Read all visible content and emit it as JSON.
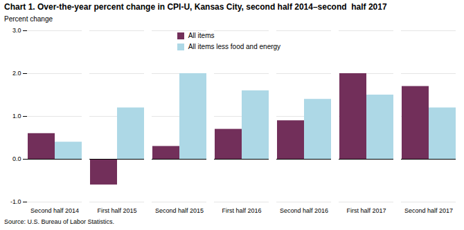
{
  "chart_data": {
    "type": "bar",
    "title": "Chart 1. Over-the-year percent change in CPI-U, Kansas City, second half 2014–second  half 2017",
    "ylabel": "Percent change",
    "source": "Source: U.S. Bureau of Labor Statistics.",
    "categories": [
      "Second half 2014",
      "First half 2015",
      "Second half 2015",
      "First half 2016",
      "Second half 2016",
      "First half 2017",
      "Second half 2017"
    ],
    "series": [
      {
        "name": "All items",
        "color": "#722F5A",
        "values": [
          0.6,
          -0.6,
          0.3,
          0.7,
          0.9,
          2.0,
          1.7
        ]
      },
      {
        "name": "All items less food and energy",
        "color": "#ADD8E6",
        "values": [
          0.4,
          1.2,
          2.0,
          1.6,
          1.4,
          1.5,
          1.2
        ]
      }
    ],
    "ylim": [
      -1.0,
      3.0
    ],
    "yticks": [
      {
        "value": -1.0,
        "label": "-1.0"
      },
      {
        "value": 0.0,
        "label": "0.0"
      },
      {
        "value": 1.0,
        "label": "1.0"
      },
      {
        "value": 2.0,
        "label": "2.0"
      },
      {
        "value": 3.0,
        "label": "3.0"
      }
    ],
    "grid": true,
    "legend": "top"
  }
}
